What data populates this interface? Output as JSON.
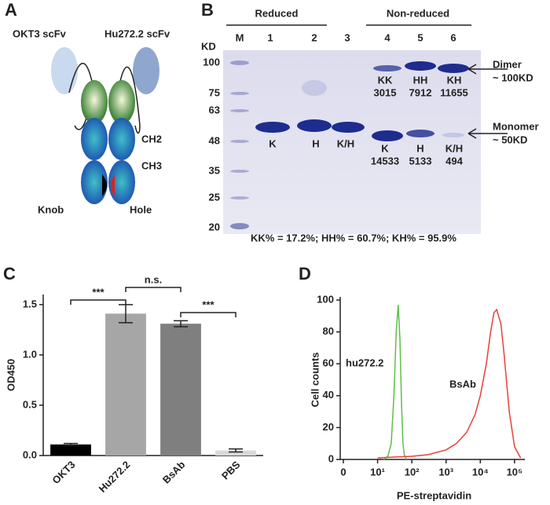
{
  "panel_a": {
    "label": "A",
    "scfv_left": "OKT3 scFv",
    "scfv_right": "Hu272.2 scFv",
    "ch2": "CH2",
    "ch3": "CH3",
    "knob": "Knob",
    "hole": "Hole"
  },
  "panel_b": {
    "label": "B",
    "groups": [
      "Reduced",
      "Non-reduced"
    ],
    "lanes": [
      "M",
      "1",
      "2",
      "3",
      "4",
      "5",
      "6"
    ],
    "kd": "KD",
    "markers": [
      100,
      75,
      63,
      48,
      35,
      25,
      20
    ],
    "band_labels": [
      [
        "K"
      ],
      [
        "H"
      ],
      [
        "K/H"
      ],
      [
        "KK",
        3015
      ],
      [
        "HH",
        7912
      ],
      [
        "KH",
        11655
      ],
      [
        "K",
        14533
      ],
      [
        "H",
        5133
      ],
      [
        "K/H",
        494
      ]
    ],
    "dimer": [
      "Dimer",
      "~ 100KD"
    ],
    "monomer": [
      "Monomer",
      "~ 50KD"
    ],
    "summary": "KK% = 17.2%; HH% = 60.7%; KH% = 95.9%"
  },
  "chart_data": [
    {
      "type": "bar",
      "label": "C",
      "ylabel": "OD450",
      "categories": [
        "OKT3",
        "Hu272.2",
        "BsAb",
        "PBS"
      ],
      "values": [
        0.11,
        1.41,
        1.31,
        0.05
      ],
      "errors": [
        0.01,
        0.09,
        0.03,
        0.015
      ],
      "colors": [
        "#000000",
        "#a6a6a6",
        "#7f7f7f",
        "#d9d9d9"
      ],
      "ylim": [
        0,
        1.6
      ],
      "yticks": [
        {
          "value": 0,
          "label": "0.0"
        },
        0.5,
        {
          "value": 1,
          "label": "1.0"
        },
        1.5
      ],
      "annotations": [
        "***",
        "n.s.",
        "***"
      ]
    },
    {
      "type": "line",
      "label": "D",
      "xlabel": "PE-streptavidin",
      "ylabel": "Cell counts",
      "xscale": "log",
      "xlim": [
        1,
        200000
      ],
      "xticks": [
        {
          "value": 1,
          "label": "0"
        },
        {
          "value": 10,
          "label": "10¹"
        },
        {
          "value": 100,
          "label": "10²"
        },
        {
          "value": 1000,
          "label": "10³"
        },
        {
          "value": 10000,
          "label": "10⁴"
        },
        {
          "value": 100000,
          "label": "10⁵"
        }
      ],
      "ylim": [
        0,
        100
      ],
      "yticks": [
        0,
        20,
        40,
        60,
        80,
        100
      ],
      "series": [
        {
          "name": "hu272.2",
          "color": "#5fbf4a",
          "x": [
            15,
            20,
            25,
            30,
            35,
            40,
            45,
            50,
            55,
            60,
            70
          ],
          "values": [
            0,
            2,
            10,
            40,
            80,
            97,
            75,
            35,
            10,
            3,
            0
          ]
        },
        {
          "name": "BsAb",
          "color": "#e8403a",
          "x": [
            10,
            100,
            300,
            1000,
            2000,
            4000,
            7000,
            10000,
            15000,
            20000,
            25000,
            30000,
            40000,
            50000,
            70000,
            100000,
            150000
          ],
          "values": [
            1,
            2,
            3,
            6,
            10,
            17,
            28,
            40,
            60,
            80,
            92,
            94,
            85,
            65,
            30,
            8,
            1
          ]
        }
      ]
    }
  ]
}
